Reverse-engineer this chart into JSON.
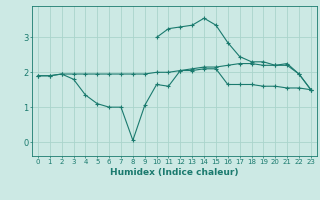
{
  "title": "",
  "xlabel": "Humidex (Indice chaleur)",
  "bg_color": "#cce9e4",
  "line_color": "#1a7a6e",
  "grid_color": "#aad4cc",
  "xlim": [
    -0.5,
    23.5
  ],
  "ylim": [
    -0.4,
    3.9
  ],
  "yticks": [
    0,
    1,
    2,
    3
  ],
  "xticks": [
    0,
    1,
    2,
    3,
    4,
    5,
    6,
    7,
    8,
    9,
    10,
    11,
    12,
    13,
    14,
    15,
    16,
    17,
    18,
    19,
    20,
    21,
    22,
    23
  ],
  "curve1_x": [
    0,
    1,
    2,
    3,
    4,
    5,
    6,
    7,
    8,
    9,
    10,
    11,
    12,
    13,
    14,
    15,
    16,
    17,
    18,
    19,
    20,
    21,
    22,
    23
  ],
  "curve1_y": [
    1.9,
    1.9,
    1.95,
    1.8,
    1.35,
    1.1,
    1.0,
    1.0,
    0.05,
    1.05,
    1.65,
    1.6,
    2.05,
    2.05,
    2.1,
    2.1,
    1.65,
    1.65,
    1.65,
    1.6,
    1.6,
    1.55,
    1.55,
    1.5
  ],
  "curve2_x": [
    0,
    1,
    2,
    3,
    4,
    5,
    6,
    7,
    8,
    9,
    10,
    11,
    12,
    13,
    14,
    15,
    16,
    17,
    18,
    19,
    20,
    21,
    22,
    23
  ],
  "curve2_y": [
    1.9,
    1.9,
    1.95,
    1.95,
    1.95,
    1.95,
    1.95,
    1.95,
    1.95,
    1.95,
    2.0,
    2.0,
    2.05,
    2.1,
    2.15,
    2.15,
    2.2,
    2.25,
    2.25,
    2.2,
    2.2,
    2.2,
    1.95,
    1.5
  ],
  "curve3_x": [
    10,
    11,
    12,
    13,
    14,
    15,
    16,
    17,
    18,
    19,
    20,
    21,
    22,
    23
  ],
  "curve3_y": [
    3.0,
    3.25,
    3.3,
    3.35,
    3.55,
    3.35,
    2.85,
    2.45,
    2.3,
    2.3,
    2.2,
    2.25,
    1.95,
    1.5
  ]
}
